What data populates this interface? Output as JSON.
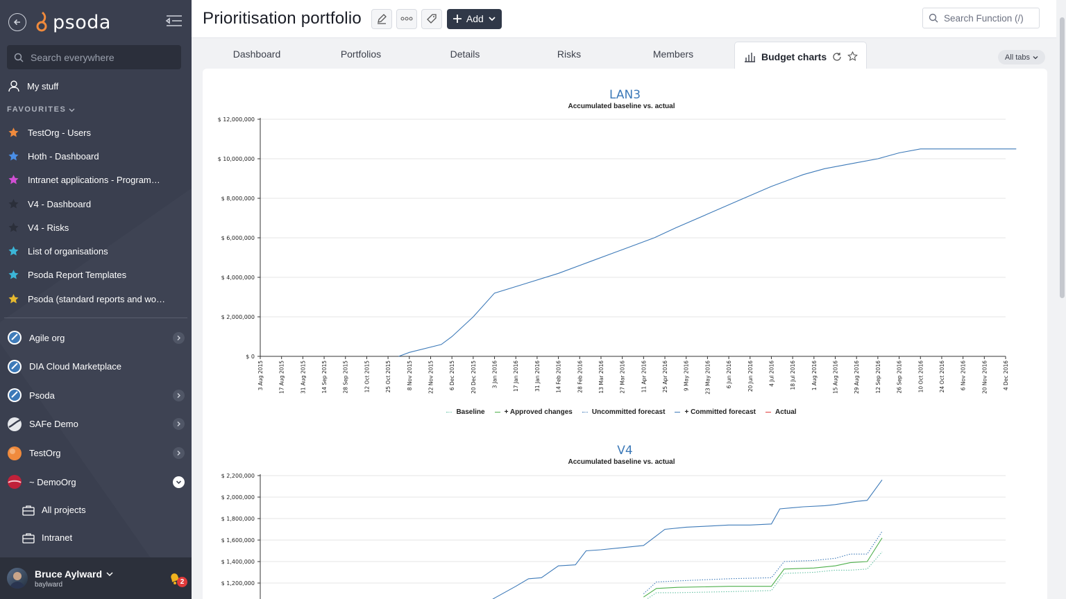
{
  "sidebar": {
    "logo_text": "psoda",
    "search_placeholder": "Search everywhere",
    "my_stuff": "My stuff",
    "favourites_header": "FAVOURITES",
    "favourites": [
      {
        "label": "TestOrg - Users",
        "color": "#f08a3c"
      },
      {
        "label": "Hoth - Dashboard",
        "color": "#4a8ee6"
      },
      {
        "label": "Intranet applications - Programme...",
        "color": "#d14fd4"
      },
      {
        "label": "V4 - Dashboard",
        "color": "#2b2f3a"
      },
      {
        "label": "V4 - Risks",
        "color": "#2b2f3a"
      },
      {
        "label": "List of organisations",
        "color": "#3bb6d8"
      },
      {
        "label": "Psoda Report Templates",
        "color": "#3bb6d8"
      },
      {
        "label": "Psoda (standard reports and work...",
        "color": "#e6b92f"
      }
    ],
    "orgs": [
      {
        "label": "Agile org",
        "has_arrow": true
      },
      {
        "label": "DIA Cloud Marketplace",
        "has_arrow": false
      },
      {
        "label": "Psoda",
        "has_arrow": true
      },
      {
        "label": "SAFe Demo",
        "has_arrow": true
      },
      {
        "label": "TestOrg",
        "has_arrow": true
      },
      {
        "label": "~ DemoOrg",
        "has_arrow": true
      }
    ],
    "sub_items": [
      "All projects",
      "Intranet"
    ],
    "user": {
      "name": "Bruce Aylward",
      "login": "baylward",
      "notifications": "2"
    }
  },
  "header": {
    "title": "Prioritisation portfolio",
    "add_label": "Add",
    "search_placeholder": "Search Function (/)"
  },
  "tabs": {
    "items": [
      "Dashboard",
      "Portfolios",
      "Details",
      "Risks",
      "Members",
      "Budget charts"
    ],
    "all_tabs": "All tabs"
  },
  "colors": {
    "baseline": "#66c2a5",
    "approved": "#4daf4a",
    "uncommitted": "#3c79b8",
    "committed": "#3c79b8",
    "actual": "#e03b3b"
  },
  "legend": [
    "Baseline",
    "+ Approved changes",
    "Uncommitted forecast",
    "+ Committed forecast",
    "Actual"
  ],
  "chart_data": [
    {
      "type": "line",
      "title": "LAN3",
      "subtitle": "Accumulated baseline vs. actual",
      "ylim": [
        0,
        12000000
      ],
      "yticks": [
        "$ 0",
        "$ 2,000,000",
        "$ 4,000,000",
        "$ 6,000,000",
        "$ 8,000,000",
        "$ 10,000,000",
        "$ 12,000,000"
      ],
      "xticks": [
        "3 Aug 2015",
        "17 Aug 2015",
        "31 Aug 2015",
        "14 Sep 2015",
        "28 Sep 2015",
        "12 Oct 2015",
        "25 Oct 2015",
        "8 Nov 2015",
        "22 Nov 2015",
        "6 Dec 2015",
        "20 Dec 2015",
        "3 Jan 2016",
        "17 Jan 2016",
        "31 Jan 2016",
        "14 Feb 2016",
        "28 Feb 2016",
        "13 Mar 2016",
        "27 Mar 2016",
        "11 Apr 2016",
        "25 Apr 2016",
        "9 May 2016",
        "23 May 2016",
        "6 Jun 2016",
        "20 Jun 2016",
        "4 Jul 2016",
        "18 Jul 2016",
        "1 Aug 2016",
        "15 Aug 2016",
        "29 Aug 2016",
        "12 Sep 2016",
        "26 Sep 2016",
        "10 Oct 2016",
        "24 Oct 2016",
        "6 Nov 2016",
        "20 Nov 2016",
        "4 Dec 2016"
      ],
      "grid": true,
      "series": [
        {
          "key": "committed",
          "x": [
            6.5,
            7.0,
            8.5,
            9.0,
            10.0,
            11.0,
            12.5,
            14.0,
            15.5,
            17.0,
            18.5,
            19.5,
            21.0,
            22.5,
            24.0,
            25.5,
            26.5,
            28.0,
            29.0,
            30.0,
            31.0,
            32.5,
            34.0,
            35.5
          ],
          "values": [
            0,
            200000,
            600000,
            1000000,
            2000000,
            3200000,
            3700000,
            4200000,
            4800000,
            5400000,
            6000000,
            6500000,
            7200000,
            7900000,
            8600000,
            9200000,
            9500000,
            9800000,
            10000000,
            10300000,
            10500000,
            10500000,
            10500000,
            10500000
          ]
        }
      ]
    },
    {
      "type": "line",
      "title": "V4",
      "subtitle": "Accumulated baseline vs. actual",
      "ylim": [
        1000000,
        2200000
      ],
      "yticks": [
        "$ 1,200,000",
        "$ 1,400,000",
        "$ 1,600,000",
        "$ 1,800,000",
        "$ 2,000,000",
        "$ 2,200,000"
      ],
      "grid": true,
      "series": [
        {
          "key": "committed",
          "x": [
            10.5,
            11.0,
            12.0,
            12.6,
            13.2,
            14.0,
            14.8,
            15.3,
            16.0,
            17.0,
            18.0,
            18.6,
            19.0,
            20.0,
            21.0,
            22.0,
            23.0,
            24.0,
            24.4,
            25.5,
            26.5,
            27.0,
            28.0,
            28.5,
            29.2
          ],
          "values": [
            1000000,
            1060000,
            1170000,
            1240000,
            1250000,
            1360000,
            1370000,
            1500000,
            1510000,
            1530000,
            1550000,
            1640000,
            1700000,
            1720000,
            1730000,
            1740000,
            1740000,
            1750000,
            1890000,
            1910000,
            1920000,
            1930000,
            1960000,
            1970000,
            2160000
          ]
        },
        {
          "key": "uncommitted",
          "x": [
            18.0,
            18.6,
            19.6,
            22.0,
            24.0,
            24.6,
            26.0,
            27.0,
            27.7,
            28.5,
            29.2
          ],
          "values": [
            1100000,
            1210000,
            1220000,
            1240000,
            1250000,
            1400000,
            1410000,
            1430000,
            1470000,
            1470000,
            1680000
          ]
        },
        {
          "key": "approved",
          "x": [
            18.0,
            18.6,
            19.6,
            22.0,
            24.0,
            24.6,
            26.0,
            27.0,
            27.7,
            28.5,
            29.2
          ],
          "values": [
            1070000,
            1150000,
            1160000,
            1170000,
            1170000,
            1330000,
            1340000,
            1360000,
            1390000,
            1400000,
            1620000
          ]
        },
        {
          "key": "baseline",
          "x": [
            18.0,
            18.6,
            19.6,
            22.0,
            24.0,
            24.6,
            26.0,
            27.0,
            27.7,
            28.5,
            29.2
          ],
          "values": [
            1030000,
            1110000,
            1110000,
            1120000,
            1130000,
            1290000,
            1300000,
            1320000,
            1320000,
            1330000,
            1490000
          ]
        }
      ]
    }
  ]
}
